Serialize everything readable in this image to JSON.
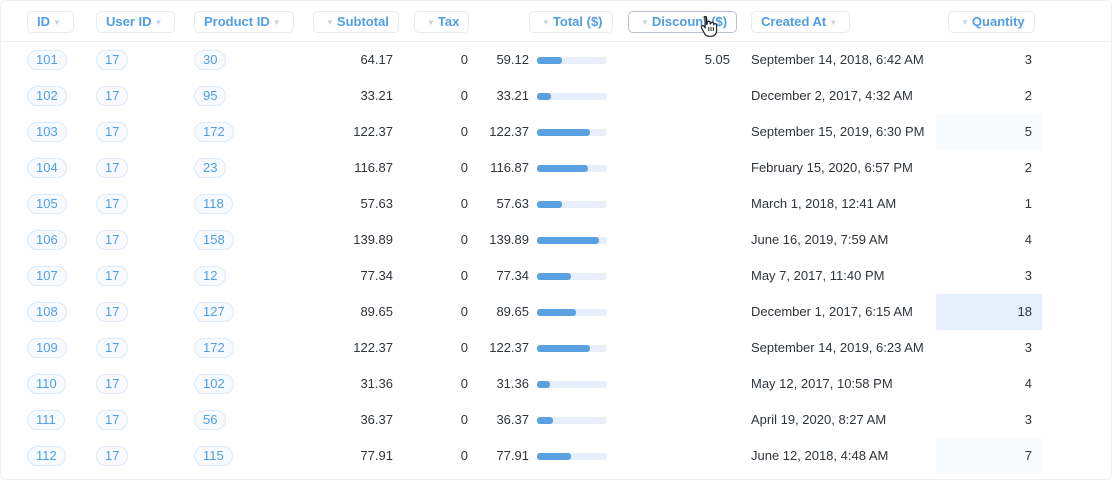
{
  "columns": [
    {
      "key": "id",
      "label": "ID"
    },
    {
      "key": "user_id",
      "label": "User ID"
    },
    {
      "key": "product_id",
      "label": "Product ID"
    },
    {
      "key": "subtotal",
      "label": "Subtotal"
    },
    {
      "key": "tax",
      "label": "Tax"
    },
    {
      "key": "total",
      "label": "Total ($)"
    },
    {
      "key": "discount",
      "label": "Discount ($)"
    },
    {
      "key": "created_at",
      "label": "Created At"
    },
    {
      "key": "quantity",
      "label": "Quantity"
    }
  ],
  "rows": [
    {
      "id": "101",
      "user_id": "17",
      "product_id": "30",
      "subtotal": "64.17",
      "tax": "0",
      "total": "59.12",
      "total_fraction": 0.36,
      "discount": "5.05",
      "created_at": "September 14, 2018, 6:42 AM",
      "quantity": "3",
      "quantity_highlight": 0
    },
    {
      "id": "102",
      "user_id": "17",
      "product_id": "95",
      "subtotal": "33.21",
      "tax": "0",
      "total": "33.21",
      "total_fraction": 0.2,
      "discount": "",
      "created_at": "December 2, 2017, 4:32 AM",
      "quantity": "2",
      "quantity_highlight": 0
    },
    {
      "id": "103",
      "user_id": "17",
      "product_id": "172",
      "subtotal": "122.37",
      "tax": "0",
      "total": "122.37",
      "total_fraction": 0.76,
      "discount": "",
      "created_at": "September 15, 2019, 6:30 PM",
      "quantity": "5",
      "quantity_highlight": 0.25
    },
    {
      "id": "104",
      "user_id": "17",
      "product_id": "23",
      "subtotal": "116.87",
      "tax": "0",
      "total": "116.87",
      "total_fraction": 0.73,
      "discount": "",
      "created_at": "February 15, 2020, 6:57 PM",
      "quantity": "2",
      "quantity_highlight": 0
    },
    {
      "id": "105",
      "user_id": "17",
      "product_id": "118",
      "subtotal": "57.63",
      "tax": "0",
      "total": "57.63",
      "total_fraction": 0.36,
      "discount": "",
      "created_at": "March 1, 2018, 12:41 AM",
      "quantity": "1",
      "quantity_highlight": 0
    },
    {
      "id": "106",
      "user_id": "17",
      "product_id": "158",
      "subtotal": "139.89",
      "tax": "0",
      "total": "139.89",
      "total_fraction": 0.88,
      "discount": "",
      "created_at": "June 16, 2019, 7:59 AM",
      "quantity": "4",
      "quantity_highlight": 0
    },
    {
      "id": "107",
      "user_id": "17",
      "product_id": "12",
      "subtotal": "77.34",
      "tax": "0",
      "total": "77.34",
      "total_fraction": 0.48,
      "discount": "",
      "created_at": "May 7, 2017, 11:40 PM",
      "quantity": "3",
      "quantity_highlight": 0
    },
    {
      "id": "108",
      "user_id": "17",
      "product_id": "127",
      "subtotal": "89.65",
      "tax": "0",
      "total": "89.65",
      "total_fraction": 0.56,
      "discount": "",
      "created_at": "December 1, 2017, 6:15 AM",
      "quantity": "18",
      "quantity_highlight": 1
    },
    {
      "id": "109",
      "user_id": "17",
      "product_id": "172",
      "subtotal": "122.37",
      "tax": "0",
      "total": "122.37",
      "total_fraction": 0.76,
      "discount": "",
      "created_at": "September 14, 2019, 6:23 AM",
      "quantity": "3",
      "quantity_highlight": 0
    },
    {
      "id": "110",
      "user_id": "17",
      "product_id": "102",
      "subtotal": "31.36",
      "tax": "0",
      "total": "31.36",
      "total_fraction": 0.19,
      "discount": "",
      "created_at": "May 12, 2017, 10:58 PM",
      "quantity": "4",
      "quantity_highlight": 0
    },
    {
      "id": "111",
      "user_id": "17",
      "product_id": "56",
      "subtotal": "36.37",
      "tax": "0",
      "total": "36.37",
      "total_fraction": 0.23,
      "discount": "",
      "created_at": "April 19, 2020, 8:27 AM",
      "quantity": "3",
      "quantity_highlight": 0
    },
    {
      "id": "112",
      "user_id": "17",
      "product_id": "115",
      "subtotal": "77.91",
      "tax": "0",
      "total": "77.91",
      "total_fraction": 0.48,
      "discount": "",
      "created_at": "June 12, 2018, 4:48 AM",
      "quantity": "7",
      "quantity_highlight": 0.25
    }
  ],
  "icons": {
    "column_sort": "chevron-down-icon",
    "cursor": "hand-pointer-icon"
  },
  "colors": {
    "accent": "#509ee3",
    "bar": "#5aa1e2",
    "bar_track": "#e7f0fa",
    "highlight": "#e4effb"
  }
}
